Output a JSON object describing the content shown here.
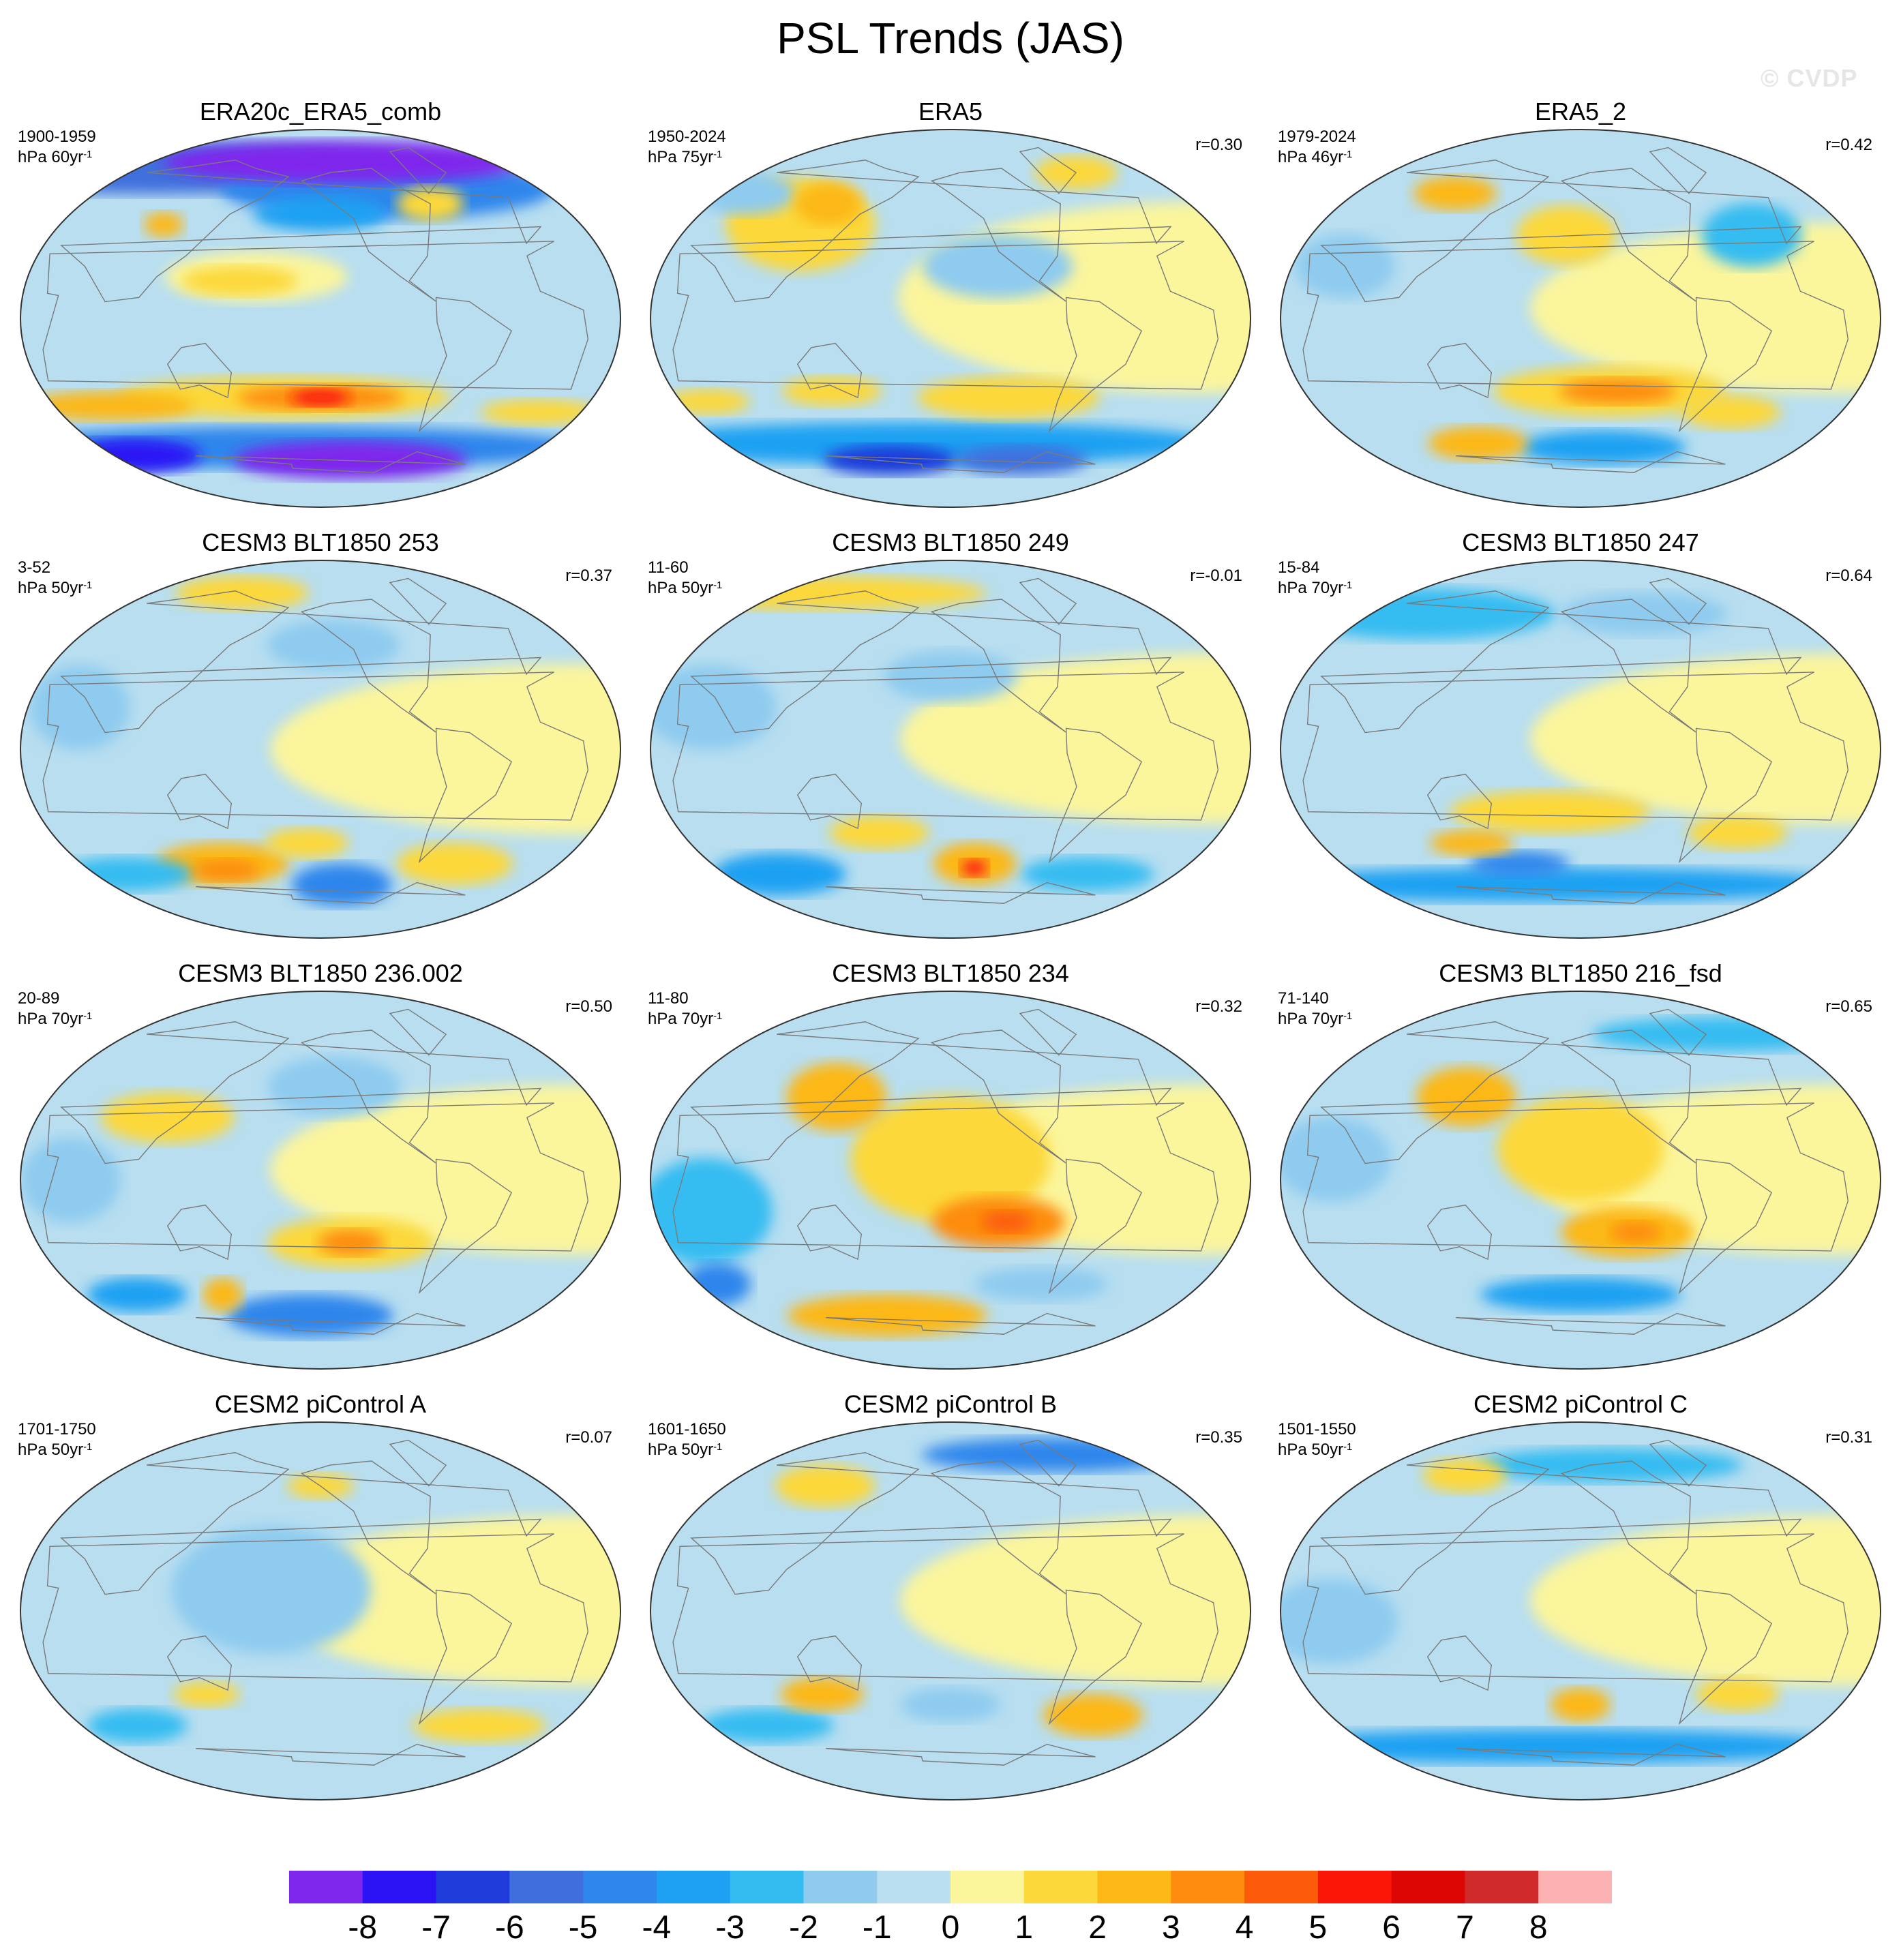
{
  "title": "PSL Trends (JAS)",
  "watermark": "© CVDP",
  "colors": {
    "ocean_background": "#b8def0",
    "continent_outline": "#7a7a7a",
    "map_border": "#333333"
  },
  "panels": [
    {
      "title": "ERA20c_ERA5_comb",
      "years": "1900-1959",
      "units": "hPa 60yr",
      "correlation": "",
      "blobs": [
        {
          "lon": -120,
          "lat": 75,
          "rx": 110,
          "ry": 10,
          "level": -8
        },
        {
          "lon": 30,
          "lat": 72,
          "rx": 160,
          "ry": 12,
          "level": -5
        },
        {
          "lon": -90,
          "lat": 62,
          "rx": 100,
          "ry": 14,
          "level": -4
        },
        {
          "lon": -150,
          "lat": 50,
          "rx": 40,
          "ry": 8,
          "level": -3
        },
        {
          "lon": -60,
          "lat": 55,
          "rx": 20,
          "ry": 8,
          "level": 2
        },
        {
          "lon": 95,
          "lat": 45,
          "rx": 12,
          "ry": 6,
          "level": 3
        },
        {
          "lon": 170,
          "lat": 20,
          "rx": 55,
          "ry": 12,
          "level": 1
        },
        {
          "lon": 160,
          "lat": 18,
          "rx": 35,
          "ry": 7,
          "level": 2
        },
        {
          "lon": -175,
          "lat": -38,
          "rx": 100,
          "ry": 10,
          "level": 2
        },
        {
          "lon": -150,
          "lat": -38,
          "rx": 50,
          "ry": 6,
          "level": 4
        },
        {
          "lon": -150,
          "lat": -38,
          "rx": 18,
          "ry": 4,
          "level": 6
        },
        {
          "lon": 60,
          "lat": -42,
          "rx": 50,
          "ry": 7,
          "level": 3
        },
        {
          "lon": 10,
          "lat": -45,
          "rx": 35,
          "ry": 6,
          "level": 2
        },
        {
          "lon": 180,
          "lat": -62,
          "rx": 180,
          "ry": 10,
          "level": -4
        },
        {
          "lon": -120,
          "lat": -68,
          "rx": 70,
          "ry": 9,
          "level": -8
        },
        {
          "lon": 30,
          "lat": -66,
          "rx": 40,
          "ry": 8,
          "level": -7
        }
      ]
    },
    {
      "title": "ERA5",
      "years": "1950-2024",
      "units": "hPa 75yr",
      "correlation": "r=0.30",
      "blobs": [
        {
          "lon": 0,
          "lat": 10,
          "rx": 180,
          "ry": 45,
          "level": 1
        },
        {
          "lon": 100,
          "lat": 45,
          "rx": 45,
          "ry": 22,
          "level": 2
        },
        {
          "lon": 110,
          "lat": 55,
          "rx": 20,
          "ry": 10,
          "level": 3
        },
        {
          "lon": -120,
          "lat": 25,
          "rx": 45,
          "ry": 15,
          "level": -1
        },
        {
          "lon": 30,
          "lat": 60,
          "rx": 30,
          "ry": 10,
          "level": -1
        },
        {
          "lon": -20,
          "lat": 70,
          "rx": 25,
          "ry": 8,
          "level": 2
        },
        {
          "lon": -110,
          "lat": -38,
          "rx": 55,
          "ry": 10,
          "level": 2
        },
        {
          "lon": 130,
          "lat": -35,
          "rx": 30,
          "ry": 7,
          "level": 2
        },
        {
          "lon": 40,
          "lat": -40,
          "rx": 25,
          "ry": 6,
          "level": 2
        },
        {
          "lon": 180,
          "lat": -60,
          "rx": 180,
          "ry": 10,
          "level": -3
        },
        {
          "lon": 150,
          "lat": -68,
          "rx": 40,
          "ry": 7,
          "level": -6
        },
        {
          "lon": -80,
          "lat": -68,
          "rx": 40,
          "ry": 7,
          "level": -5
        }
      ]
    },
    {
      "title": "ERA5_2",
      "years": "1979-2024",
      "units": "hPa 46yr",
      "correlation": "r=0.42",
      "blobs": [
        {
          "lon": 0,
          "lat": 5,
          "rx": 180,
          "ry": 40,
          "level": 1
        },
        {
          "lon": -160,
          "lat": 40,
          "rx": 30,
          "ry": 14,
          "level": 2
        },
        {
          "lon": 100,
          "lat": 60,
          "rx": 25,
          "ry": 8,
          "level": 3
        },
        {
          "lon": 60,
          "lat": 25,
          "rx": 30,
          "ry": 15,
          "level": -1
        },
        {
          "lon": -30,
          "lat": 40,
          "rx": 30,
          "ry": 15,
          "level": -2
        },
        {
          "lon": -130,
          "lat": -35,
          "rx": 70,
          "ry": 12,
          "level": 2
        },
        {
          "lon": -125,
          "lat": -35,
          "rx": 35,
          "ry": 6,
          "level": 4
        },
        {
          "lon": 120,
          "lat": -60,
          "rx": 30,
          "ry": 8,
          "level": 3
        },
        {
          "lon": -130,
          "lat": -62,
          "rx": 50,
          "ry": 8,
          "level": -3
        },
        {
          "lon": -40,
          "lat": -45,
          "rx": 30,
          "ry": 8,
          "level": 2
        }
      ]
    },
    {
      "title": "CESM3 BLT1850 253",
      "years": "3-52",
      "units": "hPa 50yr",
      "correlation": "r=0.37",
      "blobs": [
        {
          "lon": 0,
          "lat": 0,
          "rx": 180,
          "ry": 40,
          "level": 1
        },
        {
          "lon": 120,
          "lat": 75,
          "rx": 40,
          "ry": 8,
          "level": 2
        },
        {
          "lon": -140,
          "lat": 50,
          "rx": 40,
          "ry": 12,
          "level": -1
        },
        {
          "lon": 60,
          "lat": 20,
          "rx": 30,
          "ry": 20,
          "level": -1
        },
        {
          "lon": 130,
          "lat": -55,
          "rx": 40,
          "ry": 10,
          "level": 3
        },
        {
          "lon": 130,
          "lat": -58,
          "rx": 20,
          "ry": 5,
          "level": 4
        },
        {
          "lon": -160,
          "lat": -45,
          "rx": 25,
          "ry": 7,
          "level": 2
        },
        {
          "lon": -130,
          "lat": -65,
          "rx": 30,
          "ry": 10,
          "level": -4
        },
        {
          "lon": -40,
          "lat": -55,
          "rx": 35,
          "ry": 10,
          "level": 2
        },
        {
          "lon": 40,
          "lat": -60,
          "rx": 40,
          "ry": 8,
          "level": -2
        }
      ]
    },
    {
      "title": "CESM3 BLT1850 249",
      "years": "11-60",
      "units": "hPa 50yr",
      "correlation": "r=-0.01",
      "blobs": [
        {
          "lon": 0,
          "lat": 5,
          "rx": 180,
          "ry": 40,
          "level": 1
        },
        {
          "lon": 60,
          "lat": 75,
          "rx": 100,
          "ry": 8,
          "level": 2
        },
        {
          "lon": -150,
          "lat": 35,
          "rx": 40,
          "ry": 12,
          "level": -1
        },
        {
          "lon": 60,
          "lat": 20,
          "rx": 40,
          "ry": 20,
          "level": -1
        },
        {
          "lon": 160,
          "lat": -40,
          "rx": 30,
          "ry": 8,
          "level": 2
        },
        {
          "lon": -130,
          "lat": -55,
          "rx": 25,
          "ry": 10,
          "level": 3
        },
        {
          "lon": -130,
          "lat": -57,
          "rx": 8,
          "ry": 4,
          "level": 6
        },
        {
          "lon": 60,
          "lat": -60,
          "rx": 40,
          "ry": 10,
          "level": -3
        },
        {
          "lon": -30,
          "lat": -60,
          "rx": 40,
          "ry": 8,
          "level": -2
        }
      ]
    },
    {
      "title": "CESM3 BLT1850 247",
      "years": "15-84",
      "units": "hPa 70yr",
      "correlation": "r=0.64",
      "blobs": [
        {
          "lon": 0,
          "lat": 5,
          "rx": 180,
          "ry": 40,
          "level": 1
        },
        {
          "lon": 60,
          "lat": 65,
          "rx": 80,
          "ry": 12,
          "level": -2
        },
        {
          "lon": -90,
          "lat": 65,
          "rx": 50,
          "ry": 10,
          "level": -1
        },
        {
          "lon": -170,
          "lat": -30,
          "rx": 60,
          "ry": 10,
          "level": 2
        },
        {
          "lon": 130,
          "lat": -45,
          "rx": 25,
          "ry": 6,
          "level": 3
        },
        {
          "lon": -40,
          "lat": -40,
          "rx": 30,
          "ry": 8,
          "level": 2
        },
        {
          "lon": 180,
          "lat": -65,
          "rx": 180,
          "ry": 8,
          "level": -3
        },
        {
          "lon": 160,
          "lat": -55,
          "rx": 30,
          "ry": 6,
          "level": -4
        }
      ]
    },
    {
      "title": "CESM3 BLT1850 236.002",
      "years": "20-89",
      "units": "hPa 70yr",
      "correlation": "r=0.50",
      "blobs": [
        {
          "lon": 0,
          "lat": 5,
          "rx": 180,
          "ry": 40,
          "level": 1
        },
        {
          "lon": 110,
          "lat": 30,
          "rx": 40,
          "ry": 12,
          "level": 2
        },
        {
          "lon": -140,
          "lat": 45,
          "rx": 40,
          "ry": 14,
          "level": -1
        },
        {
          "lon": 60,
          "lat": 0,
          "rx": 30,
          "ry": 20,
          "level": -1
        },
        {
          "lon": -130,
          "lat": -30,
          "rx": 50,
          "ry": 12,
          "level": 2
        },
        {
          "lon": -130,
          "lat": -30,
          "rx": 20,
          "ry": 6,
          "level": 4
        },
        {
          "lon": 130,
          "lat": -55,
          "rx": 12,
          "ry": 8,
          "level": 3
        },
        {
          "lon": -160,
          "lat": -65,
          "rx": 50,
          "ry": 10,
          "level": -4
        },
        {
          "lon": 60,
          "lat": -55,
          "rx": 30,
          "ry": 8,
          "level": -3
        }
      ]
    },
    {
      "title": "CESM3 BLT1850 234",
      "years": "11-80",
      "units": "hPa 70yr",
      "correlation": "r=0.32",
      "blobs": [
        {
          "lon": 0,
          "lat": 5,
          "rx": 180,
          "ry": 40,
          "level": 1
        },
        {
          "lon": 130,
          "lat": 40,
          "rx": 30,
          "ry": 16,
          "level": 3
        },
        {
          "lon": -150,
          "lat": 10,
          "rx": 60,
          "ry": 30,
          "level": 2
        },
        {
          "lon": -120,
          "lat": -20,
          "rx": 40,
          "ry": 12,
          "level": 4
        },
        {
          "lon": -115,
          "lat": -20,
          "rx": 15,
          "ry": 5,
          "level": 5
        },
        {
          "lon": 60,
          "lat": -15,
          "rx": 40,
          "ry": 25,
          "level": -2
        },
        {
          "lon": 30,
          "lat": -50,
          "rx": 20,
          "ry": 10,
          "level": -4
        },
        {
          "lon": 150,
          "lat": -65,
          "rx": 60,
          "ry": 10,
          "level": 3
        },
        {
          "lon": -80,
          "lat": -50,
          "rx": 40,
          "ry": 8,
          "level": -1
        }
      ]
    },
    {
      "title": "CESM3 BLT1850 216_fsd",
      "years": "71-140",
      "units": "hPa 70yr",
      "correlation": "r=0.65",
      "blobs": [
        {
          "lon": 0,
          "lat": 5,
          "rx": 180,
          "ry": 40,
          "level": 1
        },
        {
          "lon": 130,
          "lat": 40,
          "rx": 30,
          "ry": 14,
          "level": 3
        },
        {
          "lon": -150,
          "lat": 15,
          "rx": 50,
          "ry": 25,
          "level": 2
        },
        {
          "lon": -120,
          "lat": -25,
          "rx": 40,
          "ry": 12,
          "level": 3
        },
        {
          "lon": -115,
          "lat": -25,
          "rx": 15,
          "ry": 5,
          "level": 4
        },
        {
          "lon": 60,
          "lat": 10,
          "rx": 35,
          "ry": 20,
          "level": -1
        },
        {
          "lon": -150,
          "lat": -55,
          "rx": 60,
          "ry": 8,
          "level": -3
        },
        {
          "lon": 0,
          "lat": 70,
          "rx": 80,
          "ry": 8,
          "level": -2
        }
      ]
    },
    {
      "title": "CESM2 piControl A",
      "years": "1701-1750",
      "units": "hPa 50yr",
      "correlation": "r=0.07",
      "blobs": [
        {
          "lon": 0,
          "lat": 5,
          "rx": 180,
          "ry": 40,
          "level": 1
        },
        {
          "lon": 180,
          "lat": 10,
          "rx": 60,
          "ry": 30,
          "level": -1
        },
        {
          "lon": -150,
          "lat": 60,
          "rx": 20,
          "ry": 6,
          "level": 2
        },
        {
          "lon": 130,
          "lat": -40,
          "rx": 20,
          "ry": 6,
          "level": 2
        },
        {
          "lon": -20,
          "lat": -55,
          "rx": 40,
          "ry": 8,
          "level": 2
        },
        {
          "lon": 60,
          "lat": -55,
          "rx": 30,
          "ry": 8,
          "level": -2
        }
      ]
    },
    {
      "title": "CESM2 piControl B",
      "years": "1601-1650",
      "units": "hPa 50yr",
      "correlation": "r=0.35",
      "blobs": [
        {
          "lon": 0,
          "lat": 5,
          "rx": 180,
          "ry": 40,
          "level": 1
        },
        {
          "lon": -30,
          "lat": 75,
          "rx": 80,
          "ry": 8,
          "level": -4
        },
        {
          "lon": 100,
          "lat": 60,
          "rx": 30,
          "ry": 10,
          "level": 2
        },
        {
          "lon": 120,
          "lat": -40,
          "rx": 25,
          "ry": 8,
          "level": 3
        },
        {
          "lon": -40,
          "lat": -50,
          "rx": 30,
          "ry": 10,
          "level": 3
        },
        {
          "lon": -150,
          "lat": -45,
          "rx": 30,
          "ry": 8,
          "level": -1
        },
        {
          "lon": 60,
          "lat": -55,
          "rx": 40,
          "ry": 8,
          "level": -2
        }
      ]
    },
    {
      "title": "CESM2 piControl C",
      "years": "1501-1550",
      "units": "hPa 50yr",
      "correlation": "r=0.31",
      "blobs": [
        {
          "lon": 0,
          "lat": 5,
          "rx": 180,
          "ry": 40,
          "level": 1
        },
        {
          "lon": -120,
          "lat": 70,
          "rx": 80,
          "ry": 8,
          "level": -2
        },
        {
          "lon": 100,
          "lat": 65,
          "rx": 25,
          "ry": 8,
          "level": 2
        },
        {
          "lon": -150,
          "lat": -45,
          "rx": 18,
          "ry": 8,
          "level": 3
        },
        {
          "lon": -40,
          "lat": -40,
          "rx": 25,
          "ry": 8,
          "level": 2
        },
        {
          "lon": 180,
          "lat": -65,
          "rx": 180,
          "ry": 8,
          "level": -3
        },
        {
          "lon": 60,
          "lat": -5,
          "rx": 40,
          "ry": 20,
          "level": -1
        }
      ]
    }
  ],
  "colorbar": {
    "colors": [
      "#7f26ec",
      "#2a12f5",
      "#1f3bd9",
      "#3f6fdd",
      "#2f86ec",
      "#1ea1f2",
      "#34bcf1",
      "#8ecbef",
      "#b8def0",
      "#fbf59c",
      "#fcd83a",
      "#fcb814",
      "#fd8c0e",
      "#fc5b0a",
      "#fc1607",
      "#dc0602",
      "#cf2b2b",
      "#fcb2b2"
    ],
    "labels": [
      "-8",
      "-7",
      "-6",
      "-5",
      "-4",
      "-3",
      "-2",
      "-1",
      "0",
      "1",
      "2",
      "3",
      "4",
      "5",
      "6",
      "7",
      "8"
    ]
  }
}
